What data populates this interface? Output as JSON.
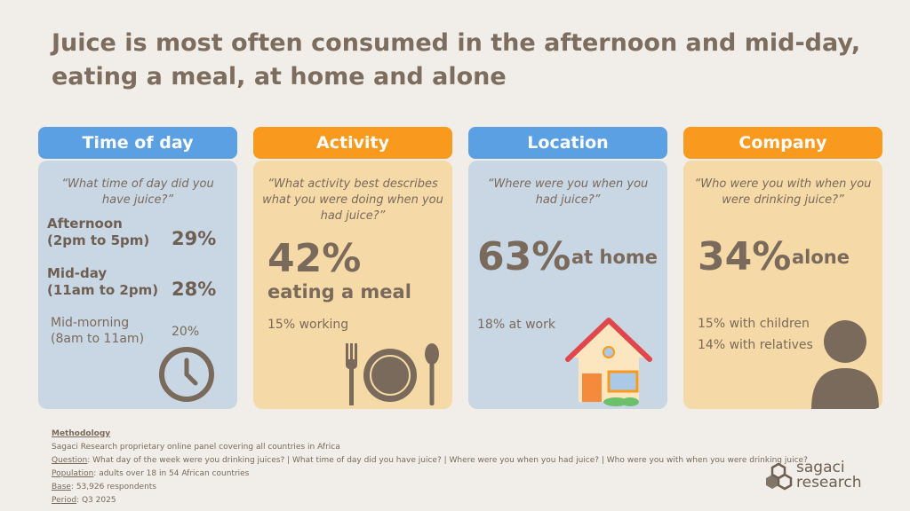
{
  "title": "Juice is most often consumed in the afternoon and mid-day, eating a meal, at home and alone",
  "columns": {
    "time_of_day": {
      "header": "Time of day",
      "question": "“What time of day did you have juice?”",
      "items": [
        {
          "label": "Afternoon\n(2pm to 5pm)",
          "value": "29%"
        },
        {
          "label": "Mid-day\n(11am to 2pm)",
          "value": "28%"
        },
        {
          "label": "Mid-morning\n(8am to 11am)",
          "value": "20%"
        }
      ],
      "icon": "clock-icon"
    },
    "activity": {
      "header": "Activity",
      "question": "“What activity best describes what you were doing when you had juice?”",
      "main_value": "42%",
      "main_label": "eating a meal",
      "secondary": [
        "15% working"
      ],
      "icon": "plate-cutlery-icon"
    },
    "location": {
      "header": "Location",
      "question": "“Where were you when you had juice?”",
      "main_value": "63%",
      "main_label": "at home",
      "secondary": [
        "18% at work"
      ],
      "icon": "house-icon"
    },
    "company": {
      "header": "Company",
      "question": "“Who were you with when you were drinking juice?”",
      "main_value": "34%",
      "main_label": "alone",
      "secondary": [
        "15% with children",
        "14% with relatives"
      ],
      "icon": "person-icon"
    }
  },
  "methodology": {
    "heading": "Methodology",
    "panel": "Sagaci Research proprietary online panel covering all countries in Africa",
    "question_label": "Question",
    "question_text": ": What day of the week were you drinking juices? | What time of day did you have juice? |  Where were you when you had juice? | Who were you with when you were drinking juice?",
    "population_label": "Population",
    "population_text": ": adults over 18 in 54 African countries",
    "base_label": "Base",
    "base_text": ": 53,926 respondents",
    "period_label": "Period",
    "period_text": ": Q3 2025"
  },
  "logo": {
    "line1": "sagaci",
    "line2": "research"
  },
  "colors": {
    "background": "#f1ede8",
    "blue_header": "#5aa0e2",
    "orange_header": "#f99a1e",
    "blue_card": "#c9d6e3",
    "peach_card": "#f5d9a6",
    "text_brown": "#7a6a5c"
  }
}
